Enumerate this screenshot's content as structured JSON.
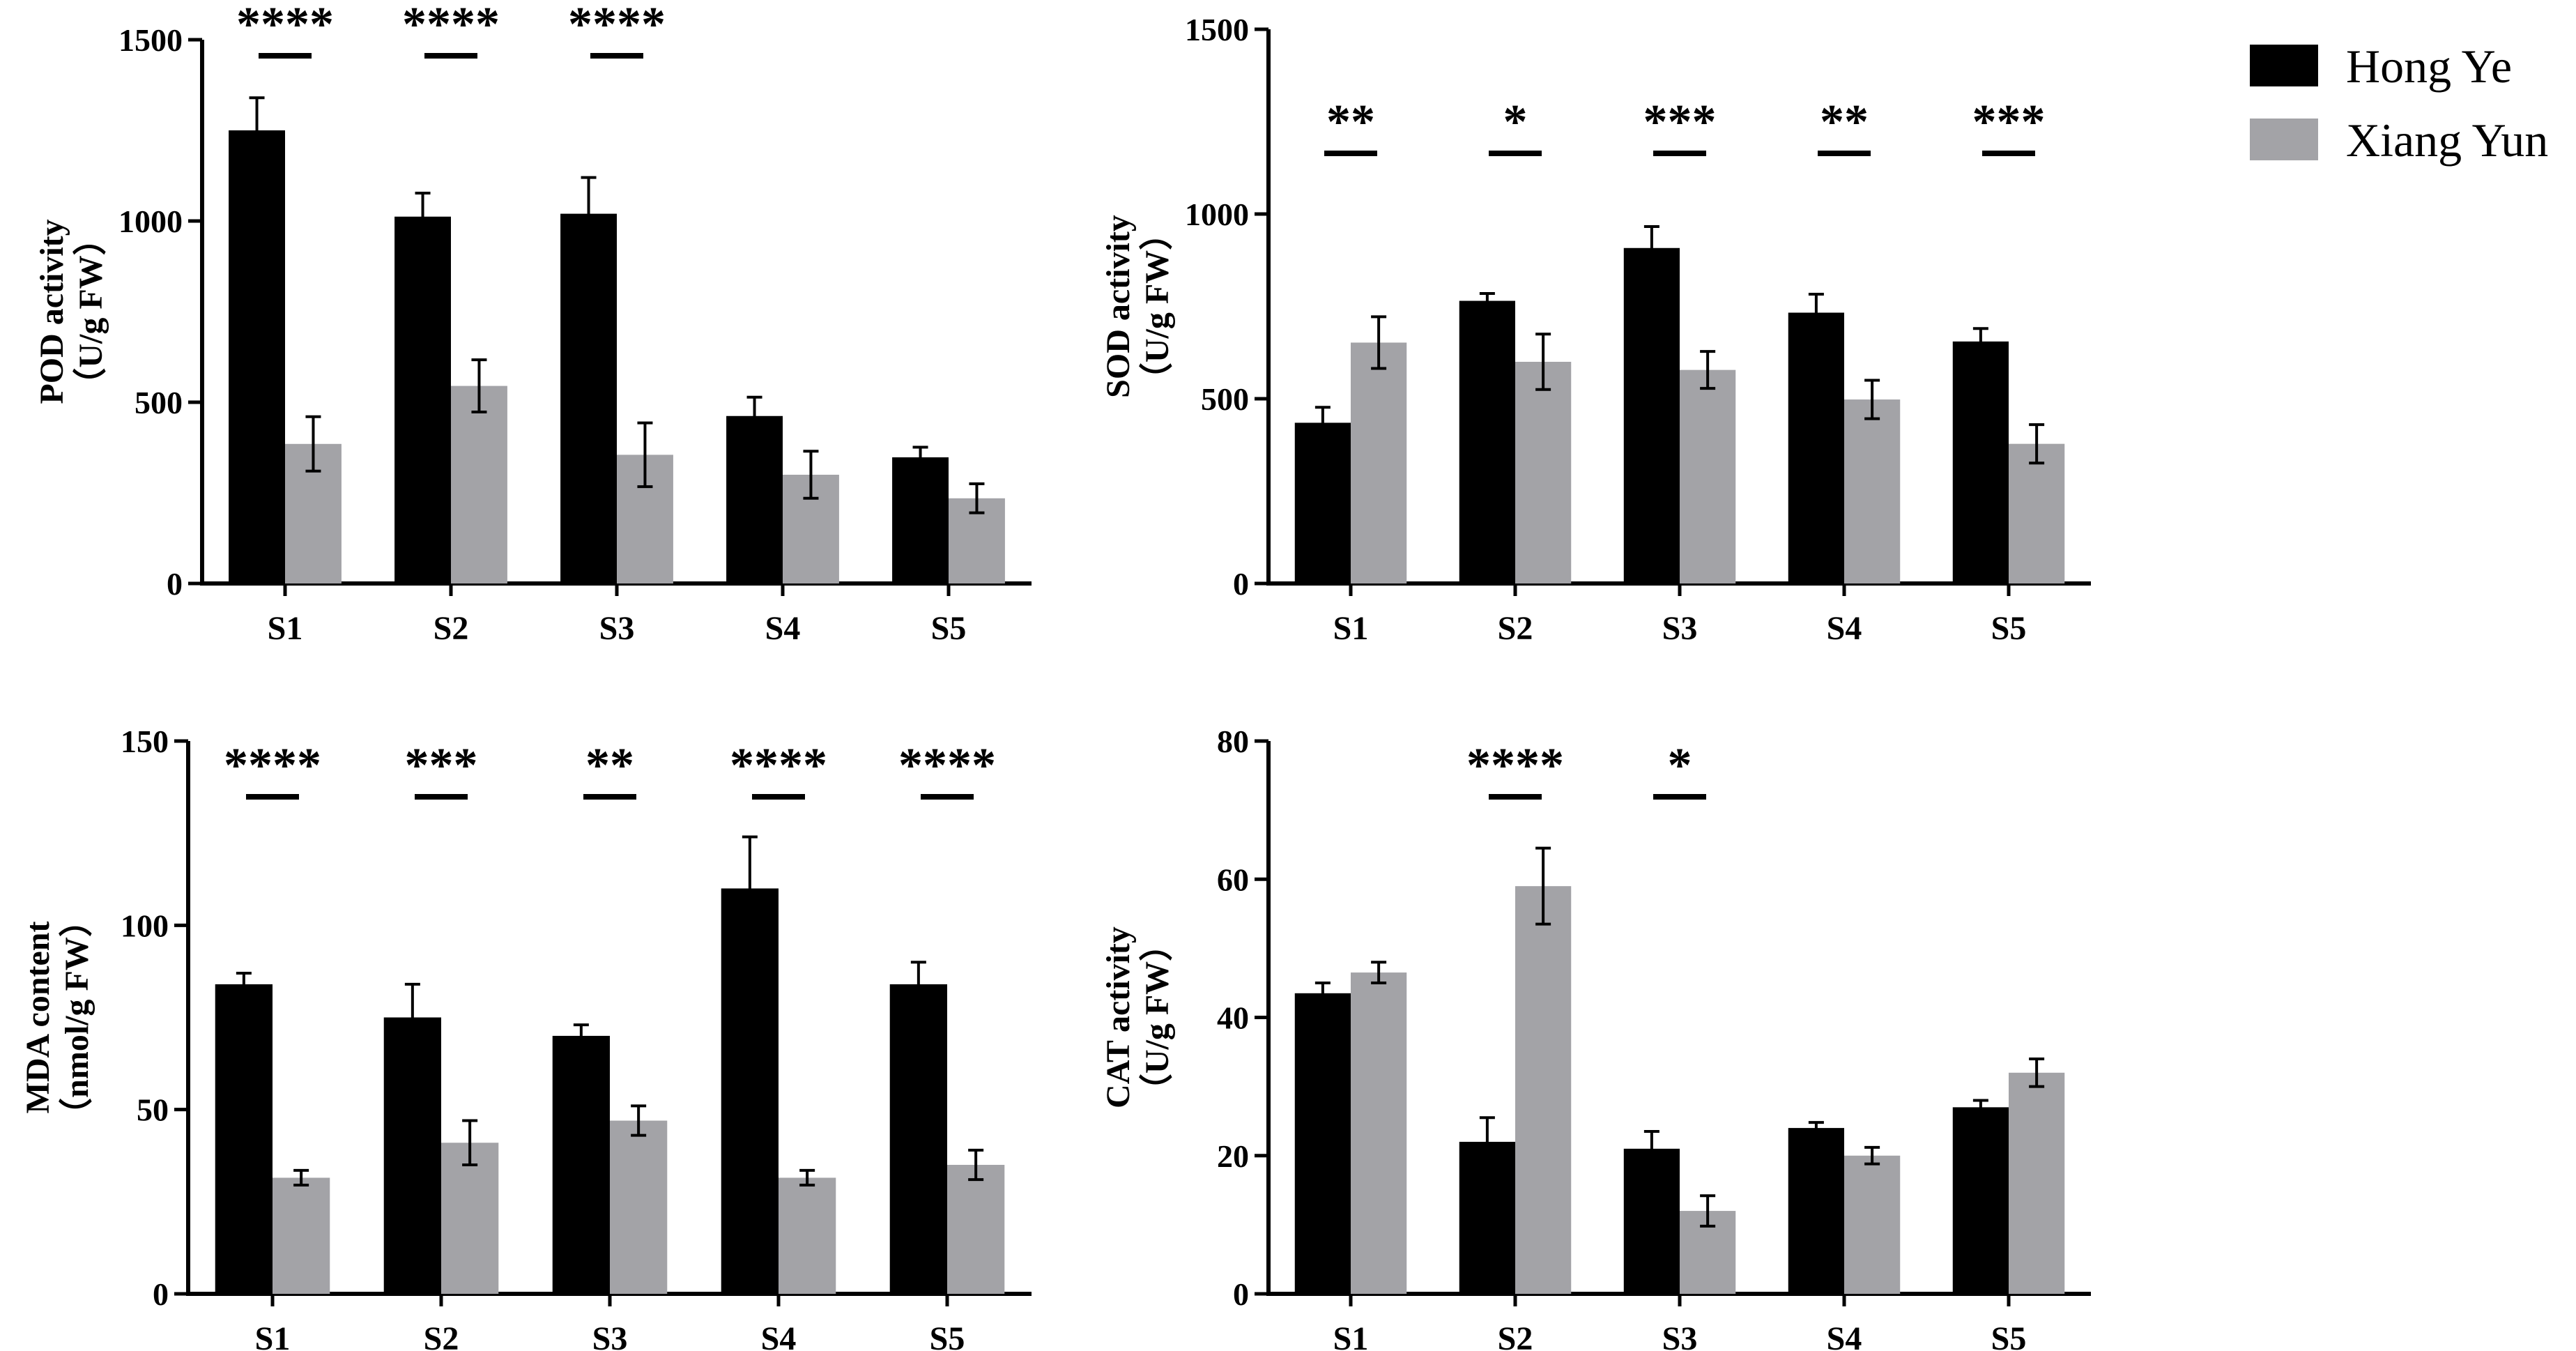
{
  "colors": {
    "hong_ye": "#000000",
    "xiang_yun": "#a3a3a7"
  },
  "legend": [
    {
      "label": "Hong Ye",
      "color": "#000000"
    },
    {
      "label": "Xiang Yun",
      "color": "#a3a3a7"
    }
  ],
  "chart_data": [
    {
      "type": "bar",
      "ylabel": [
        "POD activity",
        "（U/g FW）"
      ],
      "ylim": [
        0,
        1500
      ],
      "yticks": [
        0,
        500,
        1000,
        1500
      ],
      "categories": [
        "S1",
        "S2",
        "S3",
        "S4",
        "S5"
      ],
      "series": [
        {
          "name": "Hong Ye",
          "values": [
            1250,
            1012,
            1020,
            462,
            348
          ],
          "errors": [
            90,
            65,
            100,
            52,
            28
          ]
        },
        {
          "name": "Xiang Yun",
          "values": [
            385,
            545,
            355,
            300,
            235
          ],
          "errors": [
            75,
            72,
            88,
            65,
            40
          ]
        }
      ],
      "significance": [
        "****",
        "****",
        "****",
        "",
        ""
      ]
    },
    {
      "type": "bar",
      "ylabel": [
        "SOD activity",
        "（U/g FW）"
      ],
      "ylim": [
        0,
        1500
      ],
      "yticks": [
        0,
        500,
        1000,
        1500
      ],
      "categories": [
        "S1",
        "S2",
        "S3",
        "S4",
        "S5"
      ],
      "series": [
        {
          "name": "Hong Ye",
          "values": [
            435,
            765,
            908,
            733,
            655
          ],
          "errors": [
            42,
            20,
            58,
            50,
            35
          ]
        },
        {
          "name": "Xiang Yun",
          "values": [
            652,
            600,
            578,
            498,
            378
          ],
          "errors": [
            70,
            75,
            50,
            52,
            52
          ]
        }
      ],
      "significance": [
        "**",
        "*",
        "***",
        "**",
        "***"
      ]
    },
    {
      "type": "bar",
      "ylabel": [
        "MDA content",
        "（nmol/g FW）"
      ],
      "ylim": [
        0,
        150
      ],
      "yticks": [
        0,
        50,
        100,
        150
      ],
      "categories": [
        "S1",
        "S2",
        "S3",
        "S4",
        "S5"
      ],
      "series": [
        {
          "name": "Hong Ye",
          "values": [
            84,
            75,
            70,
            110,
            84
          ],
          "errors": [
            3,
            9,
            3,
            14,
            6
          ]
        },
        {
          "name": "Xiang Yun",
          "values": [
            31.5,
            41,
            47,
            31.5,
            35
          ],
          "errors": [
            2,
            6,
            4,
            2,
            4
          ]
        }
      ],
      "significance": [
        "****",
        "***",
        "**",
        "****",
        "****"
      ]
    },
    {
      "type": "bar",
      "ylabel": [
        "CAT activity",
        "（U/g FW）"
      ],
      "ylim": [
        0,
        80
      ],
      "yticks": [
        0,
        20,
        40,
        60,
        80
      ],
      "categories": [
        "S1",
        "S2",
        "S3",
        "S4",
        "S5"
      ],
      "series": [
        {
          "name": "Hong Ye",
          "values": [
            43.5,
            22,
            21,
            24,
            27
          ],
          "errors": [
            1.5,
            3.5,
            2.5,
            0.8,
            1.0
          ]
        },
        {
          "name": "Xiang Yun",
          "values": [
            46.5,
            59,
            12,
            20,
            32
          ],
          "errors": [
            1.5,
            5.5,
            2.2,
            1.2,
            2.0
          ]
        }
      ],
      "significance": [
        "",
        "****",
        "*",
        "",
        ""
      ]
    }
  ]
}
